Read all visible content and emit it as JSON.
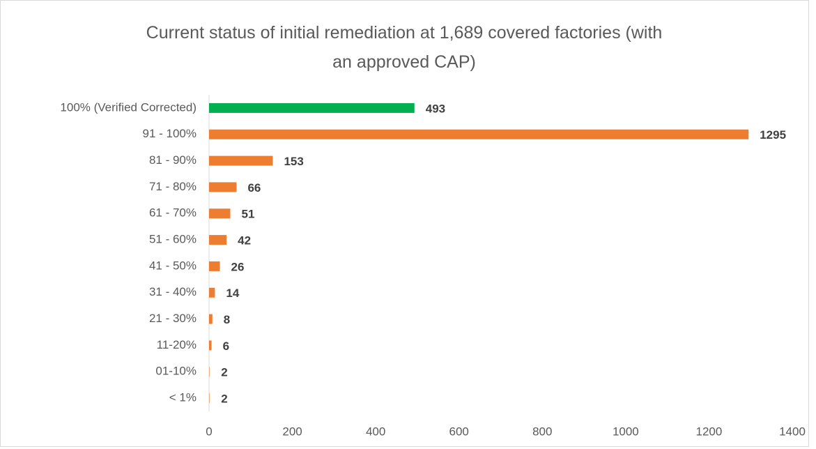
{
  "chart_data": {
    "type": "hbar",
    "title": "Current status of initial remediation at 1,689 covered factories (with an approved CAP)",
    "categories": [
      "100% (Verified Corrected)",
      "91 - 100%",
      "81 - 90%",
      "71 - 80%",
      "61 - 70%",
      "51 - 60%",
      "41 - 50%",
      "31 - 40%",
      "21 - 30%",
      "11-20%",
      "01-10%",
      "< 1%"
    ],
    "values": [
      493,
      1295,
      153,
      66,
      51,
      42,
      26,
      14,
      8,
      6,
      2,
      2
    ],
    "colors": [
      "#00b050",
      "#ed7d31",
      "#ed7d31",
      "#ed7d31",
      "#ed7d31",
      "#ed7d31",
      "#ed7d31",
      "#ed7d31",
      "#ed7d31",
      "#ed7d31",
      "#f4b183",
      "#f4b183"
    ],
    "xlim": [
      0,
      1400
    ],
    "xticks": [
      0,
      200,
      400,
      600,
      800,
      1000,
      1200,
      1400
    ],
    "grid": false
  }
}
